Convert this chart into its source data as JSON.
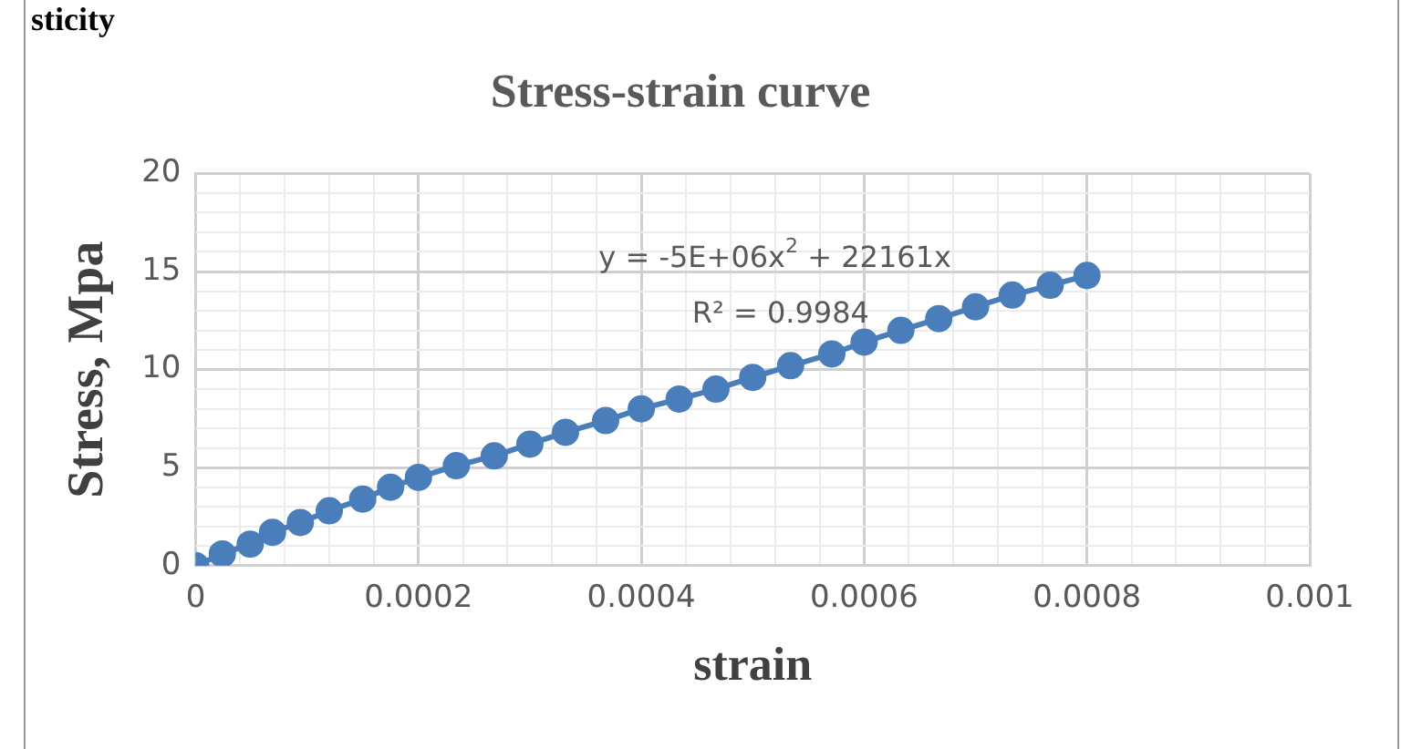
{
  "chart_data": {
    "type": "line",
    "title": "Stress-strain curve",
    "xlabel": "strain",
    "ylabel": "Stress, Mpa",
    "annotations": [
      "y = -5E+06x$^{2}$ + 22161x",
      "R² = 0.9984",
      "sticity"
    ],
    "x": [
      0,
      2.4e-05,
      4.9e-05,
      6.9e-05,
      9.4e-05,
      0.00012,
      0.00015,
      0.000175,
      0.0002,
      0.000234,
      0.000268,
      0.0003,
      0.000332,
      0.000368,
      0.0004,
      0.000434,
      0.000467,
      0.0005,
      0.000534,
      0.000571,
      0.0006,
      0.000633,
      0.000667,
      0.0007,
      0.000733,
      0.000767,
      0.0008
    ],
    "series": [
      {
        "color": "#4a7ebb",
        "values": [
          0,
          0.6,
          1.1,
          1.7,
          2.2,
          2.8,
          3.4,
          4.0,
          4.5,
          5.1,
          5.6,
          6.2,
          6.8,
          7.4,
          8.0,
          8.5,
          9.0,
          9.6,
          10.2,
          10.8,
          11.4,
          12.0,
          12.6,
          13.2,
          13.8,
          14.3,
          14.8
        ]
      }
    ],
    "xlim": [
      0,
      0.001
    ],
    "ylim": [
      0,
      20
    ],
    "xticks": [
      0,
      {
        "value": 4e-05,
        "label": null
      },
      {
        "value": 8e-05,
        "label": null
      },
      {
        "value": 0.00012,
        "label": null
      },
      {
        "value": 0.00016,
        "label": null
      },
      0.0002,
      {
        "value": 0.00024,
        "label": null
      },
      {
        "value": 0.00028,
        "label": null
      },
      {
        "value": 0.00032,
        "label": null
      },
      {
        "value": 0.00036,
        "label": null
      },
      0.0004,
      {
        "value": 0.00044,
        "label": null
      },
      {
        "value": 0.00048,
        "label": null
      },
      {
        "value": 0.00052,
        "label": null
      },
      {
        "value": 0.00056,
        "label": null
      },
      0.0006,
      {
        "value": 0.00064,
        "label": null
      },
      {
        "value": 0.00068,
        "label": null
      },
      {
        "value": 0.00072,
        "label": null
      },
      {
        "value": 0.00076,
        "label": null
      },
      0.0008,
      {
        "value": 0.00084,
        "label": null
      },
      {
        "value": 0.00088,
        "label": null
      },
      {
        "value": 0.00092,
        "label": null
      },
      {
        "value": 0.00096,
        "label": null
      },
      0.001
    ],
    "yticks": [
      0,
      {
        "value": 1,
        "label": null
      },
      {
        "value": 2,
        "label": null
      },
      {
        "value": 3,
        "label": null
      },
      {
        "value": 4,
        "label": null
      },
      5,
      {
        "value": 6,
        "label": null
      },
      {
        "value": 7,
        "label": null
      },
      {
        "value": 8,
        "label": null
      },
      {
        "value": 9,
        "label": null
      },
      10,
      {
        "value": 11,
        "label": null
      },
      {
        "value": 12,
        "label": null
      },
      {
        "value": 13,
        "label": null
      },
      {
        "value": 14,
        "label": null
      },
      15,
      {
        "value": 16,
        "label": null
      },
      {
        "value": 17,
        "label": null
      },
      {
        "value": 18,
        "label": null
      },
      {
        "value": 19,
        "label": null
      },
      20
    ],
    "grid": true,
    "legend": false,
    "marker": "circle",
    "line_style": "solid"
  }
}
